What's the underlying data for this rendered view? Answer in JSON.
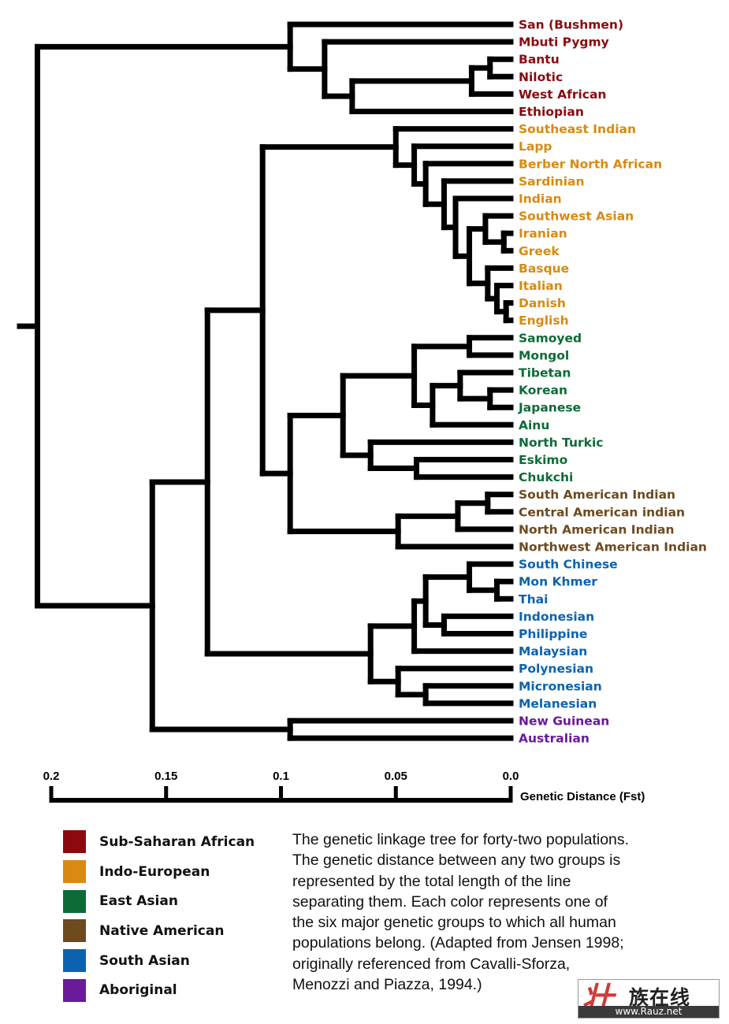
{
  "groups": [
    {
      "key": "african",
      "label": "Sub-Saharan African",
      "color": "#8b0a0f"
    },
    {
      "key": "indo",
      "label": "Indo-European",
      "color": "#d98a10"
    },
    {
      "key": "eastasian",
      "label": "East Asian",
      "color": "#0d6b38"
    },
    {
      "key": "native",
      "label": "Native American",
      "color": "#6e4a1f"
    },
    {
      "key": "southasian",
      "label": "South Asian",
      "color": "#0b63b0"
    },
    {
      "key": "aboriginal",
      "label": "Aboriginal",
      "color": "#6a1a9a"
    }
  ],
  "chart_data": {
    "type": "dendrogram",
    "title": "",
    "xlabel": "Genetic Distance (Fst)",
    "axis": {
      "min": 0.0,
      "max": 0.2,
      "direction": "right-to-left",
      "ticks": [
        {
          "value": 0.2,
          "label": "0.2"
        },
        {
          "value": 0.15,
          "label": "0.15"
        },
        {
          "value": 0.1,
          "label": "0.1"
        },
        {
          "value": 0.05,
          "label": "0.05"
        },
        {
          "value": 0.0,
          "label": "0.0"
        }
      ]
    },
    "leaves": [
      {
        "name": "San (Bushmen)",
        "group": "african"
      },
      {
        "name": "Mbuti Pygmy",
        "group": "african"
      },
      {
        "name": "Bantu",
        "group": "african"
      },
      {
        "name": "Nilotic",
        "group": "african"
      },
      {
        "name": "West African",
        "group": "african"
      },
      {
        "name": "Ethiopian",
        "group": "african"
      },
      {
        "name": "Southeast Indian",
        "group": "indo"
      },
      {
        "name": "Lapp",
        "group": "indo"
      },
      {
        "name": "Berber North African",
        "group": "indo"
      },
      {
        "name": "Sardinian",
        "group": "indo"
      },
      {
        "name": "Indian",
        "group": "indo"
      },
      {
        "name": "Southwest Asian",
        "group": "indo"
      },
      {
        "name": "Iranian",
        "group": "indo"
      },
      {
        "name": "Greek",
        "group": "indo"
      },
      {
        "name": "Basque",
        "group": "indo"
      },
      {
        "name": "Italian",
        "group": "indo"
      },
      {
        "name": "Danish",
        "group": "indo"
      },
      {
        "name": "English",
        "group": "indo"
      },
      {
        "name": "Samoyed",
        "group": "eastasian"
      },
      {
        "name": "Mongol",
        "group": "eastasian"
      },
      {
        "name": "Tibetan",
        "group": "eastasian"
      },
      {
        "name": "Korean",
        "group": "eastasian"
      },
      {
        "name": "Japanese",
        "group": "eastasian"
      },
      {
        "name": "Ainu",
        "group": "eastasian"
      },
      {
        "name": "North Turkic",
        "group": "eastasian"
      },
      {
        "name": "Eskimo",
        "group": "eastasian"
      },
      {
        "name": "Chukchi",
        "group": "eastasian"
      },
      {
        "name": "South American Indian",
        "group": "native"
      },
      {
        "name": "Central American indian",
        "group": "native"
      },
      {
        "name": "North American Indian",
        "group": "native"
      },
      {
        "name": "Northwest American Indian",
        "group": "native"
      },
      {
        "name": "South Chinese",
        "group": "southasian"
      },
      {
        "name": "Mon Khmer",
        "group": "southasian"
      },
      {
        "name": "Thai",
        "group": "southasian"
      },
      {
        "name": "Indonesian",
        "group": "southasian"
      },
      {
        "name": "Philippine",
        "group": "southasian"
      },
      {
        "name": "Malaysian",
        "group": "southasian"
      },
      {
        "name": "Polynesian",
        "group": "southasian"
      },
      {
        "name": "Micronesian",
        "group": "southasian"
      },
      {
        "name": "Melanesian",
        "group": "southasian"
      },
      {
        "name": "New Guinean",
        "group": "aboriginal"
      },
      {
        "name": "Australian",
        "group": "aboriginal"
      }
    ],
    "tree": {
      "h": 0.206,
      "c": [
        {
          "h": 0.096,
          "c": [
            {
              "leaf": 0
            },
            {
              "h": 0.081,
              "c": [
                {
                  "leaf": 1
                },
                {
                  "h": 0.069,
                  "c": [
                    {
                      "h": 0.017,
                      "c": [
                        {
                          "h": 0.009,
                          "c": [
                            {
                              "leaf": 2
                            },
                            {
                              "leaf": 3
                            }
                          ]
                        },
                        {
                          "leaf": 4
                        }
                      ]
                    },
                    {
                      "leaf": 5
                    }
                  ]
                }
              ]
            }
          ]
        },
        {
          "h": 0.156,
          "c": [
            {
              "h": 0.132,
              "c": [
                {
                  "h": 0.108,
                  "c": [
                    {
                      "h": 0.05,
                      "c": [
                        {
                          "leaf": 6
                        },
                        {
                          "h": 0.042,
                          "c": [
                            {
                              "leaf": 7
                            },
                            {
                              "h": 0.037,
                              "c": [
                                {
                                  "leaf": 8
                                },
                                {
                                  "h": 0.029,
                                  "c": [
                                    {
                                      "leaf": 9
                                    },
                                    {
                                      "h": 0.024,
                                      "c": [
                                        {
                                          "leaf": 10
                                        },
                                        {
                                          "h": 0.018,
                                          "c": [
                                            {
                                              "h": 0.011,
                                              "c": [
                                                {
                                                  "leaf": 11
                                                },
                                                {
                                                  "h": 0.003,
                                                  "c": [
                                                    {
                                                      "leaf": 12
                                                    },
                                                    {
                                                      "leaf": 13
                                                    }
                                                  ]
                                                }
                                              ]
                                            },
                                            {
                                              "h": 0.01,
                                              "c": [
                                                {
                                                  "leaf": 14
                                                },
                                                {
                                                  "h": 0.006,
                                                  "c": [
                                                    {
                                                      "leaf": 15
                                                    },
                                                    {
                                                      "h": 0.002,
                                                      "c": [
                                                        {
                                                          "leaf": 16
                                                        },
                                                        {
                                                          "leaf": 17
                                                        }
                                                      ]
                                                    }
                                                  ]
                                                }
                                              ]
                                            }
                                          ]
                                        }
                                      ]
                                    }
                                  ]
                                }
                              ]
                            }
                          ]
                        }
                      ]
                    },
                    {
                      "h": 0.096,
                      "c": [
                        {
                          "h": 0.073,
                          "c": [
                            {
                              "h": 0.042,
                              "c": [
                                {
                                  "h": 0.018,
                                  "c": [
                                    {
                                      "leaf": 18
                                    },
                                    {
                                      "leaf": 19
                                    }
                                  ]
                                },
                                {
                                  "h": 0.034,
                                  "c": [
                                    {
                                      "h": 0.022,
                                      "c": [
                                        {
                                          "leaf": 20
                                        },
                                        {
                                          "h": 0.009,
                                          "c": [
                                            {
                                              "leaf": 21
                                            },
                                            {
                                              "leaf": 22
                                            }
                                          ]
                                        }
                                      ]
                                    },
                                    {
                                      "leaf": 23
                                    }
                                  ]
                                }
                              ]
                            },
                            {
                              "h": 0.061,
                              "c": [
                                {
                                  "leaf": 24
                                },
                                {
                                  "h": 0.041,
                                  "c": [
                                    {
                                      "leaf": 25
                                    },
                                    {
                                      "leaf": 26
                                    }
                                  ]
                                }
                              ]
                            }
                          ]
                        },
                        {
                          "h": 0.049,
                          "c": [
                            {
                              "h": 0.023,
                              "c": [
                                {
                                  "h": 0.01,
                                  "c": [
                                    {
                                      "leaf": 27
                                    },
                                    {
                                      "leaf": 28
                                    }
                                  ]
                                },
                                {
                                  "leaf": 29
                                }
                              ]
                            },
                            {
                              "leaf": 30
                            }
                          ]
                        }
                      ]
                    }
                  ]
                },
                {
                  "h": 0.061,
                  "c": [
                    {
                      "h": 0.042,
                      "c": [
                        {
                          "h": 0.037,
                          "c": [
                            {
                              "h": 0.018,
                              "c": [
                                {
                                  "leaf": 31
                                },
                                {
                                  "h": 0.006,
                                  "c": [
                                    {
                                      "leaf": 32
                                    },
                                    {
                                      "leaf": 33
                                    }
                                  ]
                                }
                              ]
                            },
                            {
                              "h": 0.029,
                              "c": [
                                {
                                  "leaf": 34
                                },
                                {
                                  "leaf": 35
                                }
                              ]
                            }
                          ]
                        },
                        {
                          "leaf": 36
                        }
                      ]
                    },
                    {
                      "h": 0.049,
                      "c": [
                        {
                          "leaf": 37
                        },
                        {
                          "h": 0.037,
                          "c": [
                            {
                              "leaf": 38
                            },
                            {
                              "leaf": 39
                            }
                          ]
                        }
                      ]
                    }
                  ]
                }
              ]
            },
            {
              "h": 0.096,
              "c": [
                {
                  "leaf": 40
                },
                {
                  "leaf": 41
                }
              ]
            }
          ]
        }
      ]
    }
  },
  "legend": {
    "items": [
      {
        "label": "Sub-Saharan African",
        "color": "#8b0a0f"
      },
      {
        "label": "Indo-European",
        "color": "#d98a10"
      },
      {
        "label": "East Asian",
        "color": "#0d6b38"
      },
      {
        "label": "Native American",
        "color": "#6e4a1f"
      },
      {
        "label": "South Asian",
        "color": "#0b63b0"
      },
      {
        "label": "Aboriginal",
        "color": "#6a1a9a"
      }
    ]
  },
  "caption": "The genetic linkage tree for forty-two populations.\nThe genetic distance between any two groups is\nrepresented by the total length of the line\nseparating them.  Each color represents one of\nthe six major genetic groups to which all human\npopulations belong.  (Adapted from Jensen 1998;\noriginally referenced from Cavalli-Sforza,\nMenozzi and Piazza, 1994.)",
  "watermark": {
    "logo_glyph": "壮",
    "title": "族在线",
    "url": "www.Rauz.net"
  }
}
